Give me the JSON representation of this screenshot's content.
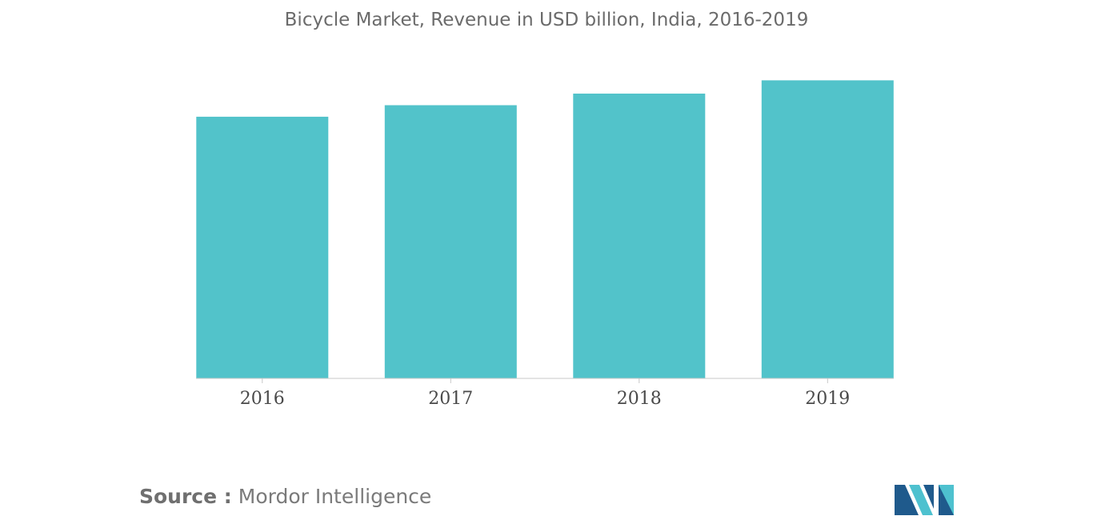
{
  "chart_data": {
    "type": "bar",
    "title": "Bicycle Market, Revenue in USD billion, India, 2016-2019",
    "categories": [
      "2016",
      "2017",
      "2018",
      "2019"
    ],
    "values": [
      1.58,
      1.65,
      1.72,
      1.8
    ],
    "ylim": [
      0,
      2.0
    ],
    "grid": false,
    "bar_color": "#52c3ca",
    "axis_color": "#c8c8c8"
  },
  "source": {
    "prefix": "Source :",
    "name": "Mordor Intelligence"
  },
  "logo": {
    "icon": "mordor-intelligence-logo",
    "colors": [
      "#1f5a8c",
      "#4ec1cf"
    ]
  }
}
